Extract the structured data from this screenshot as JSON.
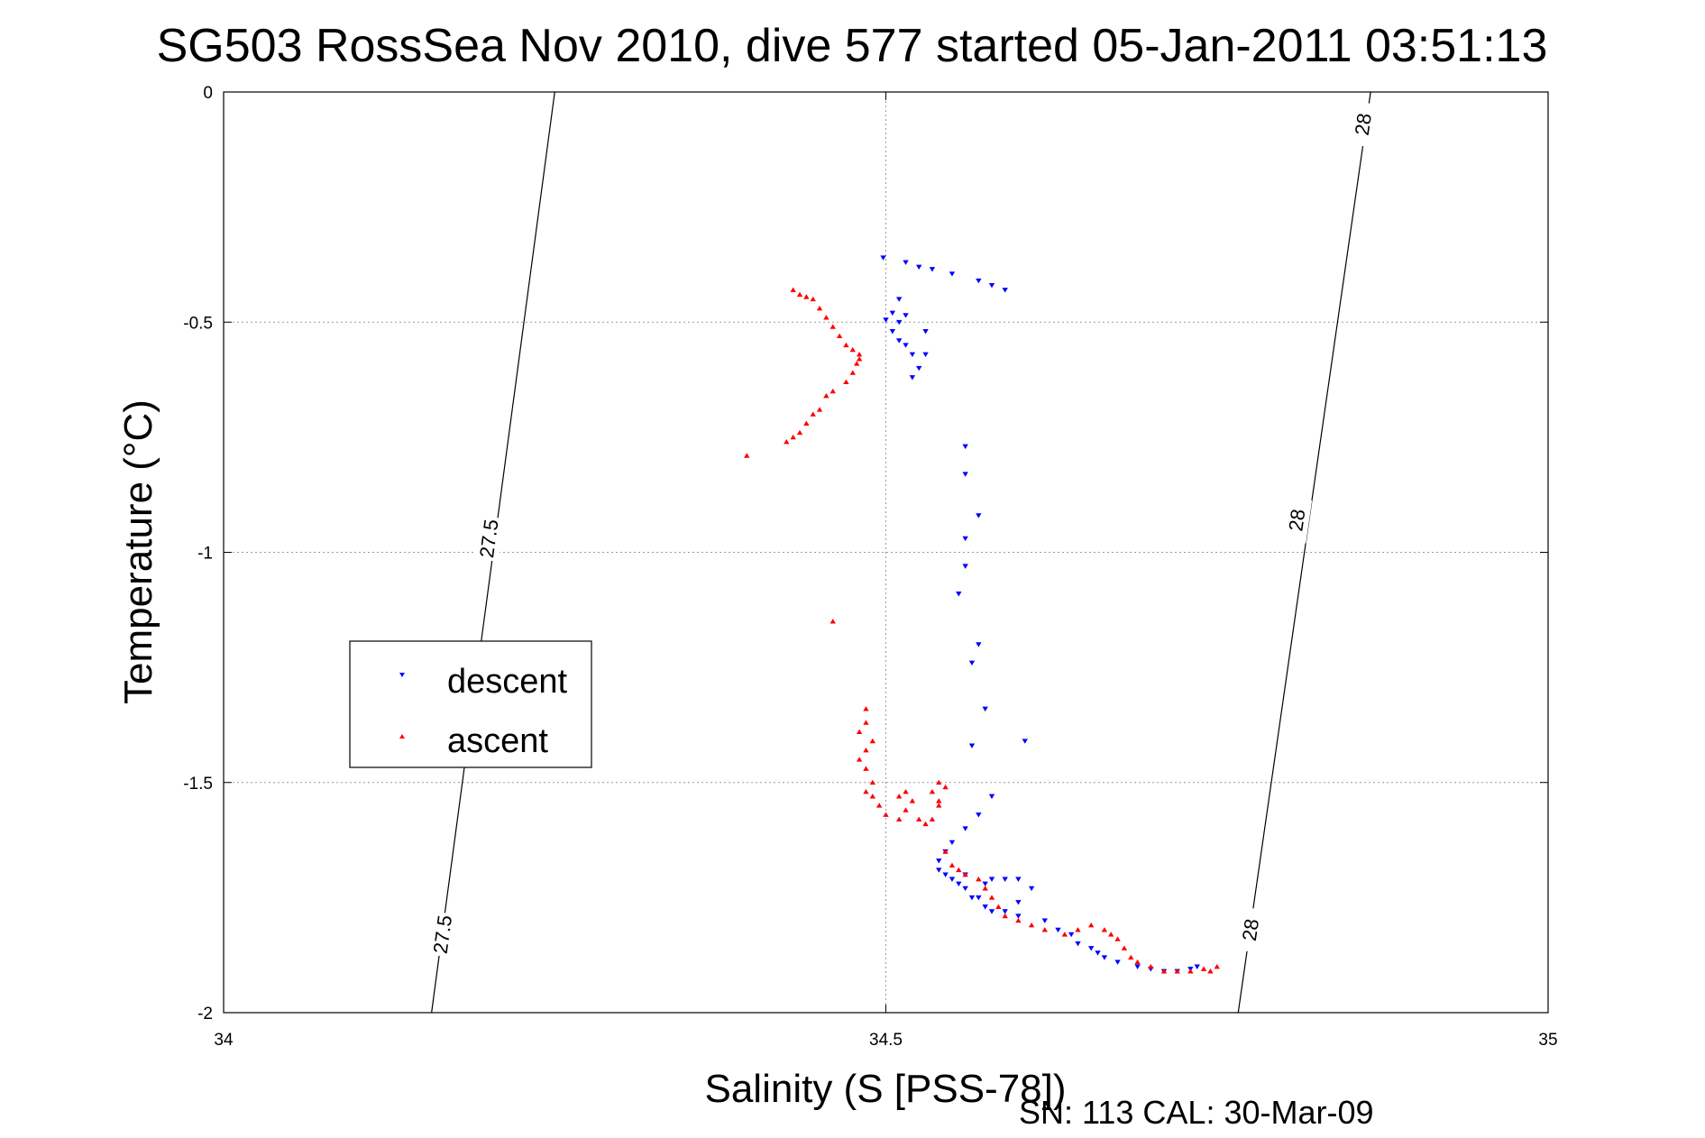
{
  "chart_data": {
    "type": "scatter",
    "title": "SG503 RossSea Nov 2010, dive 577 started 05-Jan-2011 03:51:13",
    "xlabel": "Salinity (S [PSS-78])",
    "ylabel": "Temperature (°C)",
    "footer": "SN: 113  CAL: 30-Mar-09",
    "xlim": [
      34,
      35
    ],
    "ylim": [
      -2,
      0
    ],
    "xticks": [
      34,
      34.5,
      35
    ],
    "xtick_labels": [
      "34",
      "34.5",
      "35"
    ],
    "yticks": [
      0,
      -0.5,
      -1,
      -1.5,
      -2
    ],
    "ytick_labels": [
      "0",
      "-0.5",
      "-1",
      "-1.5",
      "-2"
    ],
    "grid": true,
    "legend_position": "middle-left",
    "density_contours": [
      {
        "level": 27.5,
        "points": [
          [
            34.25,
            0
          ],
          [
            34.157,
            -2
          ]
        ],
        "labels": [
          {
            "text": "27.5",
            "x": 34.2,
            "y": -0.97
          },
          {
            "text": "27.5",
            "x": 34.165,
            "y": -1.83
          }
        ]
      },
      {
        "level": 28,
        "points": [
          [
            34.866,
            0
          ],
          [
            34.766,
            -2
          ]
        ],
        "labels": [
          {
            "text": "28",
            "x": 34.86,
            "y": -0.07
          },
          {
            "text": "28",
            "x": 34.81,
            "y": -0.93
          },
          {
            "text": "28",
            "x": 34.775,
            "y": -1.82
          }
        ]
      }
    ],
    "series": [
      {
        "name": "descent",
        "color": "#0000ff",
        "marker": "triangle-down",
        "points": [
          [
            34.498,
            -0.36
          ],
          [
            34.515,
            -0.37
          ],
          [
            34.525,
            -0.38
          ],
          [
            34.535,
            -0.385
          ],
          [
            34.55,
            -0.395
          ],
          [
            34.57,
            -0.41
          ],
          [
            34.58,
            -0.42
          ],
          [
            34.59,
            -0.43
          ],
          [
            34.51,
            -0.45
          ],
          [
            34.505,
            -0.48
          ],
          [
            34.51,
            -0.5
          ],
          [
            34.505,
            -0.52
          ],
          [
            34.51,
            -0.54
          ],
          [
            34.515,
            -0.55
          ],
          [
            34.52,
            -0.57
          ],
          [
            34.525,
            -0.6
          ],
          [
            34.52,
            -0.62
          ],
          [
            34.53,
            -0.57
          ],
          [
            34.53,
            -0.52
          ],
          [
            34.5,
            -0.495
          ],
          [
            34.515,
            -0.485
          ],
          [
            34.56,
            -0.77
          ],
          [
            34.56,
            -0.83
          ],
          [
            34.57,
            -0.92
          ],
          [
            34.56,
            -0.97
          ],
          [
            34.56,
            -1.03
          ],
          [
            34.555,
            -1.09
          ],
          [
            34.57,
            -1.2
          ],
          [
            34.565,
            -1.24
          ],
          [
            34.575,
            -1.34
          ],
          [
            34.565,
            -1.42
          ],
          [
            34.605,
            -1.41
          ],
          [
            34.58,
            -1.53
          ],
          [
            34.57,
            -1.57
          ],
          [
            34.56,
            -1.6
          ],
          [
            34.55,
            -1.63
          ],
          [
            34.545,
            -1.65
          ],
          [
            34.54,
            -1.67
          ],
          [
            34.54,
            -1.69
          ],
          [
            34.545,
            -1.7
          ],
          [
            34.55,
            -1.71
          ],
          [
            34.555,
            -1.72
          ],
          [
            34.56,
            -1.7
          ],
          [
            34.56,
            -1.73
          ],
          [
            34.57,
            -1.75
          ],
          [
            34.575,
            -1.72
          ],
          [
            34.58,
            -1.71
          ],
          [
            34.59,
            -1.71
          ],
          [
            34.6,
            -1.71
          ],
          [
            34.61,
            -1.73
          ],
          [
            34.6,
            -1.76
          ],
          [
            34.59,
            -1.78
          ],
          [
            34.575,
            -1.77
          ],
          [
            34.565,
            -1.75
          ],
          [
            34.58,
            -1.78
          ],
          [
            34.6,
            -1.79
          ],
          [
            34.62,
            -1.8
          ],
          [
            34.63,
            -1.82
          ],
          [
            34.64,
            -1.83
          ],
          [
            34.645,
            -1.85
          ],
          [
            34.655,
            -1.86
          ],
          [
            34.66,
            -1.87
          ],
          [
            34.665,
            -1.88
          ],
          [
            34.675,
            -1.89
          ],
          [
            34.69,
            -1.9
          ],
          [
            34.7,
            -1.905
          ],
          [
            34.71,
            -1.91
          ],
          [
            34.72,
            -1.91
          ],
          [
            34.73,
            -1.905
          ],
          [
            34.735,
            -1.9
          ]
        ]
      },
      {
        "name": "ascent",
        "color": "#ff0000",
        "marker": "triangle-up",
        "points": [
          [
            34.43,
            -0.43
          ],
          [
            34.435,
            -0.44
          ],
          [
            34.44,
            -0.445
          ],
          [
            34.445,
            -0.45
          ],
          [
            34.45,
            -0.47
          ],
          [
            34.455,
            -0.49
          ],
          [
            34.46,
            -0.51
          ],
          [
            34.465,
            -0.53
          ],
          [
            34.47,
            -0.55
          ],
          [
            34.475,
            -0.56
          ],
          [
            34.48,
            -0.57
          ],
          [
            34.478,
            -0.59
          ],
          [
            34.475,
            -0.61
          ],
          [
            34.47,
            -0.63
          ],
          [
            34.46,
            -0.65
          ],
          [
            34.455,
            -0.66
          ],
          [
            34.45,
            -0.69
          ],
          [
            34.445,
            -0.7
          ],
          [
            34.44,
            -0.72
          ],
          [
            34.435,
            -0.74
          ],
          [
            34.43,
            -0.75
          ],
          [
            34.425,
            -0.76
          ],
          [
            34.395,
            -0.79
          ],
          [
            34.48,
            -0.58
          ],
          [
            34.46,
            -1.15
          ],
          [
            34.485,
            -1.34
          ],
          [
            34.485,
            -1.37
          ],
          [
            34.48,
            -1.39
          ],
          [
            34.49,
            -1.41
          ],
          [
            34.485,
            -1.43
          ],
          [
            34.48,
            -1.45
          ],
          [
            34.485,
            -1.47
          ],
          [
            34.49,
            -1.5
          ],
          [
            34.485,
            -1.52
          ],
          [
            34.49,
            -1.53
          ],
          [
            34.495,
            -1.55
          ],
          [
            34.5,
            -1.57
          ],
          [
            34.51,
            -1.58
          ],
          [
            34.515,
            -1.56
          ],
          [
            34.51,
            -1.53
          ],
          [
            34.515,
            -1.52
          ],
          [
            34.52,
            -1.54
          ],
          [
            34.525,
            -1.58
          ],
          [
            34.53,
            -1.59
          ],
          [
            34.535,
            -1.58
          ],
          [
            34.54,
            -1.55
          ],
          [
            34.535,
            -1.52
          ],
          [
            34.54,
            -1.5
          ],
          [
            34.545,
            -1.51
          ],
          [
            34.54,
            -1.54
          ],
          [
            34.545,
            -1.65
          ],
          [
            34.55,
            -1.68
          ],
          [
            34.555,
            -1.69
          ],
          [
            34.56,
            -1.7
          ],
          [
            34.57,
            -1.71
          ],
          [
            34.575,
            -1.73
          ],
          [
            34.58,
            -1.75
          ],
          [
            34.585,
            -1.77
          ],
          [
            34.59,
            -1.79
          ],
          [
            34.6,
            -1.8
          ],
          [
            34.61,
            -1.81
          ],
          [
            34.62,
            -1.82
          ],
          [
            34.635,
            -1.83
          ],
          [
            34.645,
            -1.82
          ],
          [
            34.655,
            -1.81
          ],
          [
            34.665,
            -1.82
          ],
          [
            34.67,
            -1.83
          ],
          [
            34.675,
            -1.84
          ],
          [
            34.68,
            -1.86
          ],
          [
            34.685,
            -1.88
          ],
          [
            34.69,
            -1.89
          ],
          [
            34.7,
            -1.9
          ],
          [
            34.71,
            -1.91
          ],
          [
            34.72,
            -1.91
          ],
          [
            34.73,
            -1.91
          ],
          [
            34.74,
            -1.905
          ],
          [
            34.75,
            -1.9
          ],
          [
            34.745,
            -1.91
          ]
        ]
      }
    ]
  }
}
